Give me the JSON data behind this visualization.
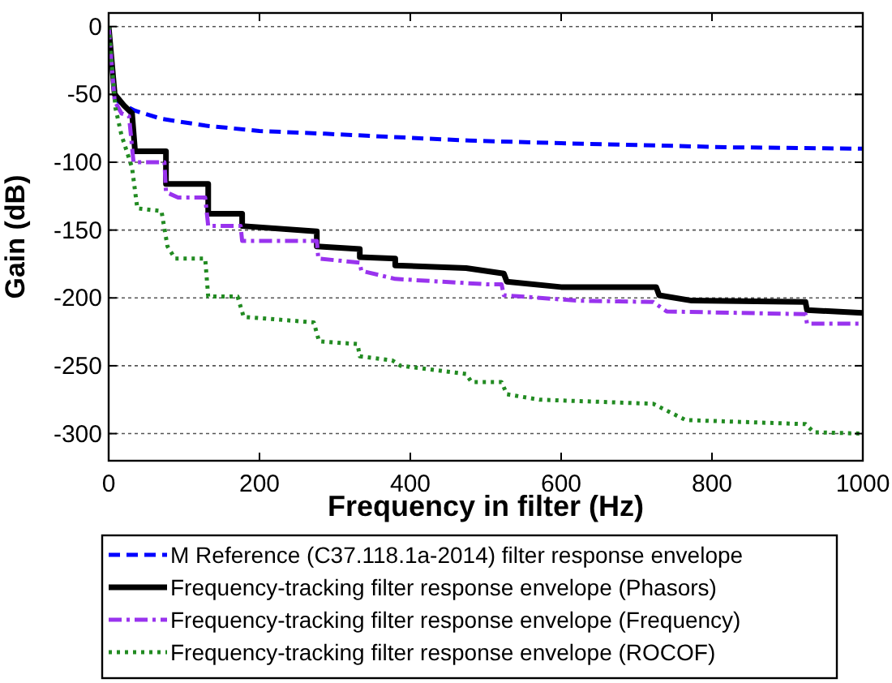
{
  "chart_data": {
    "type": "line",
    "xlabel": "Frequency in filter (Hz)",
    "ylabel": "Gain (dB)",
    "xlim": [
      0,
      1000
    ],
    "ylim": [
      -320,
      10
    ],
    "xticks": [
      0,
      200,
      400,
      600,
      800,
      1000
    ],
    "yticks": [
      -300,
      -250,
      -200,
      -150,
      -100,
      -50,
      0
    ],
    "grid": "y",
    "legend": "bottom",
    "series": [
      {
        "name": "M Reference (C37.118.1a-2014) filter response envelope",
        "color": "#0000ff",
        "line_style": "dashed",
        "x": [
          0,
          5,
          10,
          20,
          35,
          70,
          128,
          200,
          287,
          400,
          478,
          600,
          751,
          823,
          1000
        ],
        "values": [
          0,
          -35,
          -54,
          -58,
          -62,
          -68,
          -73,
          -77,
          -79,
          -82,
          -84,
          -86,
          -88,
          -89,
          -90
        ]
      },
      {
        "name": "Frequency-tracking filter response envelope (Phasors)",
        "color": "#000000",
        "line_style": "solid",
        "x": [
          0,
          8,
          20,
          31,
          35,
          76,
          76,
          132,
          132,
          177,
          177,
          276,
          276,
          333,
          333,
          380,
          380,
          474,
          524,
          528,
          600,
          726,
          730,
          773,
          924,
          926,
          1000
        ],
        "values": [
          0,
          -50,
          -58,
          -64,
          -92,
          -92,
          -116,
          -116,
          -138,
          -138,
          -147,
          -151,
          -162,
          -164,
          -170,
          -171,
          -176,
          -178,
          -182,
          -188,
          -192,
          -192,
          -198,
          -202,
          -203,
          -209,
          -211
        ]
      },
      {
        "name": "Frequency-tracking filter response envelope (Frequency)",
        "color": "#9933ee",
        "line_style": "dashdot",
        "x": [
          0,
          8,
          17,
          27,
          33,
          74,
          76,
          92,
          128,
          132,
          175,
          177,
          276,
          278,
          333,
          335,
          380,
          502,
          521,
          524,
          621,
          722,
          740,
          924,
          926,
          1000
        ],
        "values": [
          0,
          -55,
          -64,
          -66,
          -100,
          -100,
          -122,
          -126,
          -126,
          -147,
          -147,
          -158,
          -158,
          -171,
          -174,
          -180,
          -186,
          -190,
          -190,
          -198,
          -202,
          -203,
          -210,
          -212,
          -219,
          -219
        ]
      },
      {
        "name": "Frequency-tracking filter response envelope (ROCOF)",
        "color": "#228b22",
        "line_style": "dotted",
        "x": [
          0,
          9,
          17,
          31,
          38,
          70,
          78,
          88,
          128,
          132,
          171,
          179,
          272,
          279,
          330,
          333,
          376,
          387,
          474,
          481,
          521,
          528,
          571,
          722,
          765,
          924,
          935,
          1000
        ],
        "values": [
          0,
          -60,
          -80,
          -104,
          -134,
          -136,
          -162,
          -171,
          -171,
          -199,
          -199,
          -214,
          -218,
          -232,
          -234,
          -243,
          -246,
          -250,
          -256,
          -262,
          -262,
          -271,
          -275,
          -278,
          -290,
          -293,
          -299,
          -300
        ]
      }
    ]
  }
}
